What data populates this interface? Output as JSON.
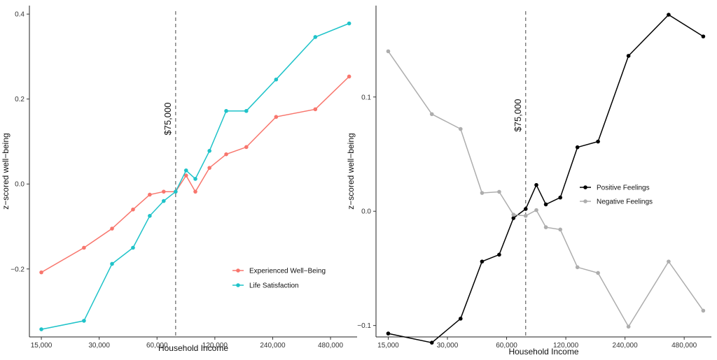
{
  "chart_data": [
    {
      "type": "line",
      "xlabel": "Household Income",
      "ylabel": "z−scored well−being",
      "x_scale": "log2",
      "x_ticks": [
        15000,
        30000,
        60000,
        120000,
        240000,
        480000
      ],
      "x_tick_labels": [
        "15,000",
        "30,000",
        "60,000",
        "120,000",
        "240,000",
        "480,000"
      ],
      "xlim": [
        13000,
        660000
      ],
      "ylim": [
        -0.36,
        0.42
      ],
      "y_ticks": [
        -0.2,
        0.0,
        0.2,
        0.4
      ],
      "y_tick_labels": [
        "−0.2",
        "0.0",
        "0.2",
        "0.4"
      ],
      "grid": false,
      "legend_position": "bottom-right",
      "reference_line": {
        "x": 75000,
        "label": "$75,000"
      },
      "x": [
        15000,
        25000,
        35000,
        45000,
        55000,
        65000,
        75000,
        85000,
        95000,
        112500,
        137500,
        175000,
        250000,
        400000,
        600000
      ],
      "series": [
        {
          "name": "Experienced Well−Being",
          "color": "#F8766D",
          "values": [
            -0.208,
            -0.15,
            -0.105,
            -0.06,
            -0.025,
            -0.018,
            -0.018,
            0.02,
            -0.018,
            0.038,
            0.07,
            0.087,
            0.158,
            0.176,
            0.253
          ]
        },
        {
          "name": "Life Satisfaction",
          "color": "#1FC3C9",
          "values": [
            -0.342,
            -0.322,
            -0.188,
            -0.15,
            -0.075,
            -0.04,
            -0.018,
            0.032,
            0.012,
            0.078,
            0.172,
            0.172,
            0.246,
            0.346,
            0.378
          ]
        }
      ]
    },
    {
      "type": "line",
      "xlabel": "Household Income",
      "ylabel": "z−scored well−being",
      "x_scale": "log2",
      "x_ticks": [
        15000,
        30000,
        60000,
        120000,
        240000,
        480000
      ],
      "x_tick_labels": [
        "15,000",
        "30,000",
        "60,000",
        "120,000",
        "240,000",
        "480,000"
      ],
      "xlim": [
        13000,
        660000
      ],
      "ylim": [
        -0.11,
        0.18
      ],
      "y_ticks": [
        -0.1,
        0.0,
        0.1
      ],
      "y_tick_labels": [
        "−0.1",
        "0.0",
        "0.1"
      ],
      "grid": false,
      "legend_position": "right",
      "reference_line": {
        "x": 75000,
        "label": "$75,000"
      },
      "x": [
        15000,
        25000,
        35000,
        45000,
        55000,
        65000,
        75000,
        85000,
        95000,
        112500,
        137500,
        175000,
        250000,
        400000,
        600000
      ],
      "series": [
        {
          "name": "Positive Feelings",
          "color": "#000000",
          "values": [
            -0.107,
            -0.115,
            -0.094,
            -0.044,
            -0.038,
            -0.006,
            0.002,
            0.023,
            0.006,
            0.012,
            0.056,
            0.061,
            0.136,
            0.172,
            0.153
          ]
        },
        {
          "name": "Negative Feelings",
          "color": "#ADADAD",
          "values": [
            0.14,
            0.085,
            0.072,
            0.016,
            0.017,
            -0.003,
            -0.004,
            0.001,
            -0.014,
            -0.016,
            -0.049,
            -0.054,
            -0.101,
            -0.044,
            -0.087
          ]
        }
      ]
    }
  ]
}
